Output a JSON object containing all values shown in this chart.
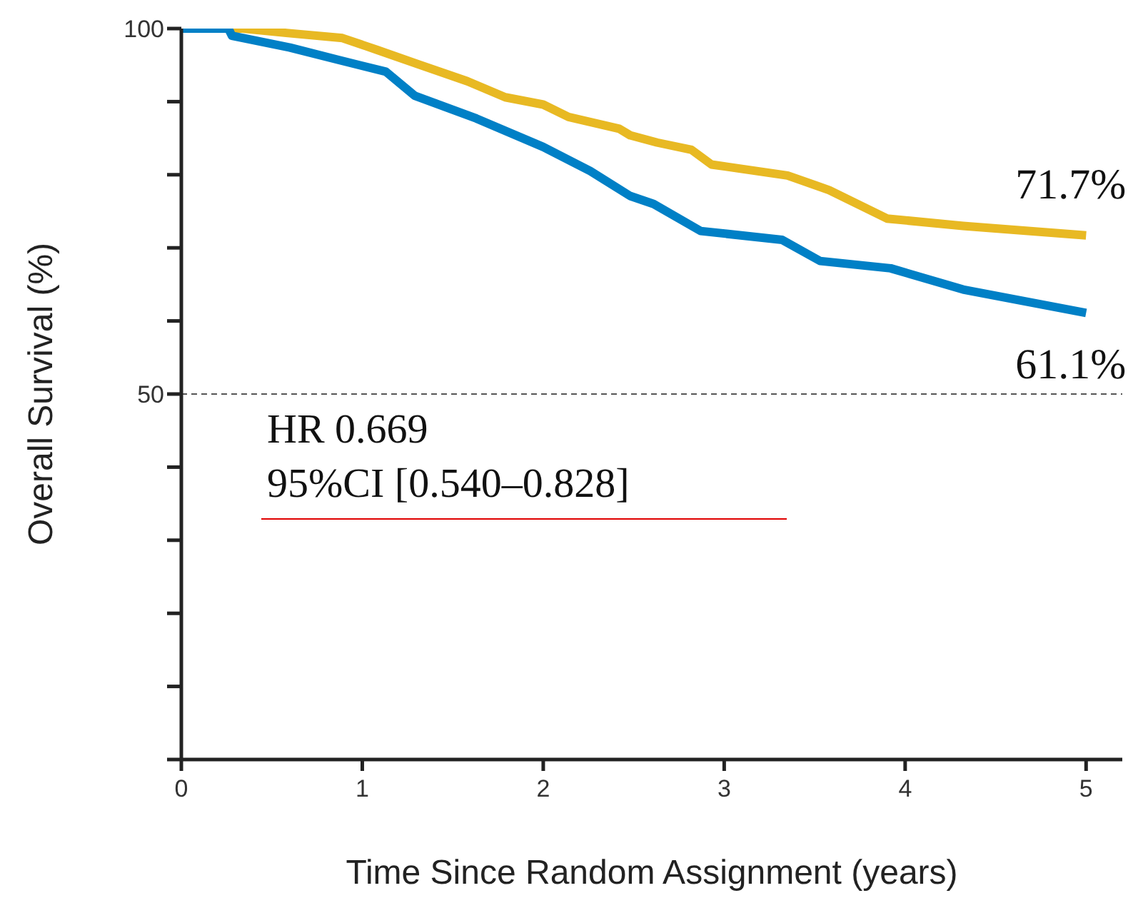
{
  "chart_data": {
    "type": "line",
    "xlabel": "Time Since Random Assignment (years)",
    "ylabel": "Overall Survival (%)",
    "xlim": [
      0,
      5.2
    ],
    "xticks": [
      0,
      1,
      2,
      3,
      4,
      5
    ],
    "ylim": [
      0,
      100
    ],
    "yticks": [
      {
        "value": 0,
        "label": null
      },
      {
        "value": 10,
        "label": null
      },
      {
        "value": 20,
        "label": null
      },
      {
        "value": 30,
        "label": null
      },
      {
        "value": 40,
        "label": null
      },
      50,
      {
        "value": 60,
        "label": null
      },
      {
        "value": 70,
        "label": null
      },
      {
        "value": 80,
        "label": null
      },
      {
        "value": 90,
        "label": null
      },
      100
    ],
    "marker": "none",
    "series": [
      {
        "color": "#e8b923",
        "x": [
          0,
          0.34,
          0.58,
          0.89,
          1.08,
          1.31,
          1.58,
          1.79,
          2.0,
          2.14,
          2.42,
          2.48,
          2.63,
          2.82,
          2.93,
          3.35,
          3.58,
          3.9,
          4.32,
          5.0
        ],
        "values": [
          100,
          100,
          99.4,
          98.7,
          97.1,
          95.1,
          92.8,
          90.6,
          89.6,
          87.9,
          86.3,
          85.4,
          84.4,
          83.4,
          81.4,
          79.9,
          77.9,
          74.0,
          73.0,
          71.7
        ]
      },
      {
        "color": "#0080c6",
        "x": [
          0,
          0.26,
          0.28,
          0.6,
          0.87,
          1.13,
          1.29,
          1.63,
          2.0,
          2.26,
          2.48,
          2.61,
          2.87,
          3.32,
          3.53,
          3.92,
          4.32,
          5.0
        ],
        "values": [
          100,
          100,
          99.0,
          97.4,
          95.7,
          94.1,
          90.8,
          87.7,
          83.8,
          80.5,
          77.1,
          76.0,
          72.3,
          71.1,
          68.2,
          67.2,
          64.3,
          61.1
        ]
      }
    ],
    "ref_lines": [
      {
        "axis": "y",
        "value": 50,
        "color": "#555555",
        "line_style": "dashed"
      }
    ],
    "annotations": [
      {
        "text": "71.7%",
        "x": 5,
        "y": 71.7
      },
      {
        "text": "61.1%",
        "x": 5,
        "y": 61.1
      },
      "HR 0.669",
      "95%CI [0.540–0.828]"
    ]
  }
}
